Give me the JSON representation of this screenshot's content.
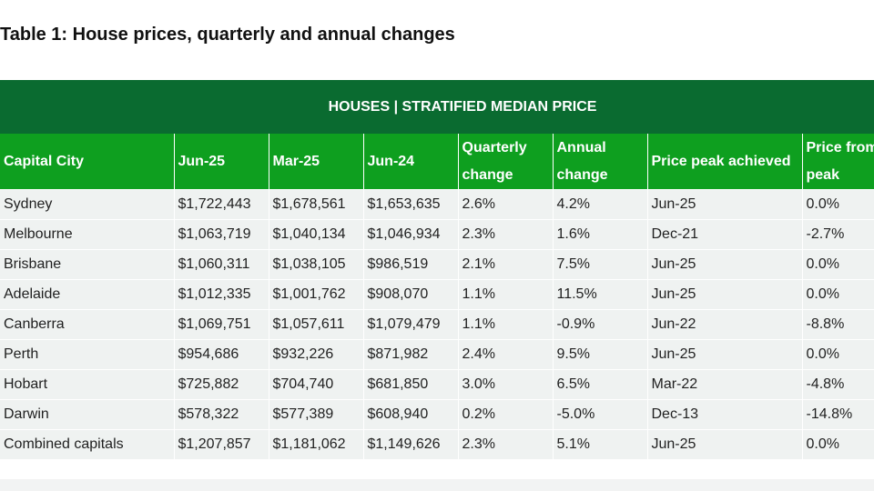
{
  "title": "Table 1: House prices, quarterly and annual changes",
  "table": {
    "band_label": "HOUSES | STRATIFIED MEDIAN PRICE",
    "headers": [
      "Capital City",
      "Jun-25",
      "Mar-25",
      "Jun-24",
      "Quarterly change",
      "Annual change",
      "Price peak achieved",
      "Price from peak"
    ],
    "rows": [
      [
        "Sydney",
        "$1,722,443",
        "$1,678,561",
        "$1,653,635",
        "2.6%",
        "4.2%",
        "Jun-25",
        "0.0%"
      ],
      [
        "Melbourne",
        "$1,063,719",
        "$1,040,134",
        "$1,046,934",
        "2.3%",
        "1.6%",
        "Dec-21",
        "-2.7%"
      ],
      [
        "Brisbane",
        "$1,060,311",
        "$1,038,105",
        "$986,519",
        "2.1%",
        "7.5%",
        "Jun-25",
        "0.0%"
      ],
      [
        "Adelaide",
        "$1,012,335",
        "$1,001,762",
        "$908,070",
        "1.1%",
        "11.5%",
        "Jun-25",
        "0.0%"
      ],
      [
        "Canberra",
        "$1,069,751",
        "$1,057,611",
        "$1,079,479",
        "1.1%",
        "-0.9%",
        "Jun-22",
        "-8.8%"
      ],
      [
        "Perth",
        "$954,686",
        "$932,226",
        "$871,982",
        "2.4%",
        "9.5%",
        "Jun-25",
        "0.0%"
      ],
      [
        "Hobart",
        "$725,882",
        "$704,740",
        "$681,850",
        "3.0%",
        "6.5%",
        "Mar-22",
        "-4.8%"
      ],
      [
        "Darwin",
        "$578,322",
        "$577,389",
        "$608,940",
        "0.2%",
        "-5.0%",
        "Dec-13",
        "-14.8%"
      ],
      [
        "Combined capitals",
        "$1,207,857",
        "$1,181,062",
        "$1,149,626",
        "2.3%",
        "5.1%",
        "Jun-25",
        "0.0%"
      ]
    ]
  },
  "colors": {
    "band": "#0a6b30",
    "header": "#0e9f1f",
    "row": "#eff2f1"
  }
}
